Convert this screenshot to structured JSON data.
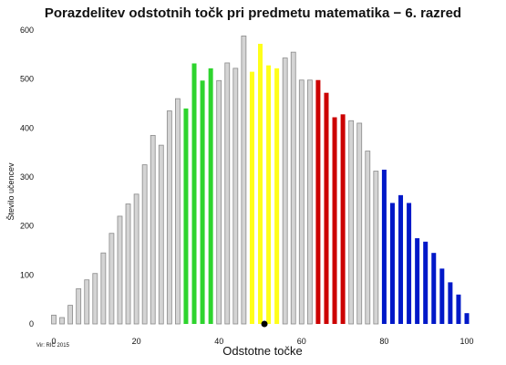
{
  "chart_data": {
    "type": "bar",
    "title": "Porazdelitev odstotnih točk pri predmetu matematika − 6. razred",
    "xlabel": "Odstotne točke",
    "ylabel": "Število učencev",
    "xlim": [
      0,
      100
    ],
    "ylim": [
      0,
      600
    ],
    "x_ticks": [
      0,
      20,
      40,
      60,
      80,
      100
    ],
    "y_ticks": [
      0,
      100,
      200,
      300,
      400,
      500,
      600
    ],
    "grid": false,
    "legend": "none",
    "source": "Vir: RIC 2015",
    "colors": {
      "gray": "#d4d4d4",
      "green": "#2ed42e",
      "yellow": "#ffff1a",
      "red": "#cc0000",
      "blue": "#0018c8"
    },
    "marker": {
      "x": 51,
      "y": 0,
      "color": "#000000"
    },
    "series": [
      {
        "x": [
          0,
          2,
          4,
          6,
          8,
          10,
          12,
          14,
          16,
          18,
          20,
          22,
          24,
          26,
          28,
          30,
          32,
          34,
          36,
          38,
          40,
          42,
          44,
          46,
          48,
          50,
          52,
          54,
          56,
          58,
          60,
          62,
          64,
          66,
          68,
          70,
          72,
          74,
          76,
          78,
          80,
          82,
          84,
          86,
          88,
          90,
          92,
          94,
          96,
          98,
          100
        ],
        "values": [
          18,
          13,
          38,
          72,
          90,
          103,
          145,
          185,
          220,
          245,
          265,
          325,
          385,
          365,
          435,
          460,
          440,
          532,
          497,
          522,
          497,
          533,
          522,
          588,
          515,
          572,
          528,
          522,
          543,
          555,
          498,
          498,
          498,
          472,
          422,
          428,
          415,
          410,
          353,
          312,
          315,
          247,
          263,
          247,
          175,
          168,
          145,
          113,
          85,
          60,
          22
        ],
        "colors": [
          "gray",
          "gray",
          "gray",
          "gray",
          "gray",
          "gray",
          "gray",
          "gray",
          "gray",
          "gray",
          "gray",
          "gray",
          "gray",
          "gray",
          "gray",
          "gray",
          "green",
          "green",
          "green",
          "green",
          "gray",
          "gray",
          "gray",
          "gray",
          "yellow",
          "yellow",
          "yellow",
          "yellow",
          "gray",
          "gray",
          "gray",
          "gray",
          "red",
          "red",
          "red",
          "red",
          "gray",
          "gray",
          "gray",
          "gray",
          "blue",
          "blue",
          "blue",
          "blue",
          "blue",
          "blue",
          "blue",
          "blue",
          "blue",
          "blue",
          "blue"
        ]
      }
    ]
  }
}
